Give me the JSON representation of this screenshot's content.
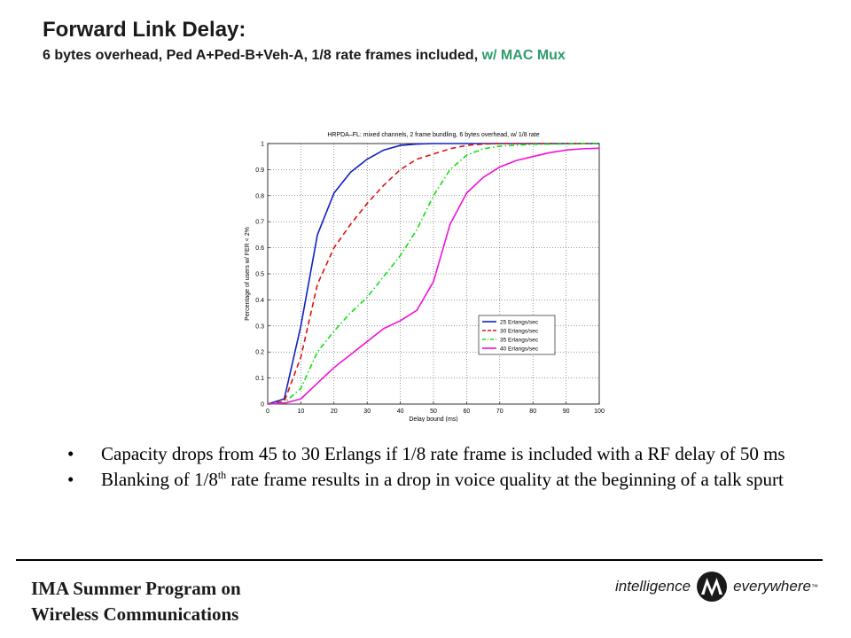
{
  "title": "Forward Link Delay:",
  "subtitle": {
    "main": "6 bytes overhead, Ped A+Ped-B+Veh-A, 1/8 rate frames included, ",
    "accent": "w/ MAC Mux"
  },
  "colors": {
    "accent": "#2e9c6a",
    "series": [
      "#1020c0",
      "#e01010",
      "#10e010",
      "#f010d8"
    ]
  },
  "bullets": [
    {
      "text": "Capacity drops from 45 to 30 Erlangs if 1/8 rate frame is included with a RF delay of 50 ms"
    },
    {
      "pre": "Blanking of 1/8",
      "sup": "th",
      "post": " rate frame results in a drop in voice quality at the beginning of a talk spurt"
    }
  ],
  "footer": {
    "line1": "IMA Summer Program on",
    "line2": "Wireless Communications"
  },
  "logo": {
    "left": "intelligence",
    "right": "everywhere",
    "tm": "™",
    "icon": "motorola-batwing-icon"
  },
  "chart_data": {
    "type": "line",
    "title": "HRPDA–FL: mixed channels, 2 frame bundling, 6 bytes overhead, w/ 1/8 rate",
    "xlabel": "Delay bound (ms)",
    "ylabel": "Percentage of users w/ FER < 2%",
    "xlim": [
      0,
      100
    ],
    "ylim": [
      0,
      1
    ],
    "xticks": [
      0,
      10,
      20,
      30,
      40,
      50,
      60,
      70,
      80,
      90,
      100
    ],
    "yticks": [
      0,
      0.1,
      0.2,
      0.3,
      0.4,
      0.5,
      0.6,
      0.7,
      0.8,
      0.9,
      1
    ],
    "grid": true,
    "legend_position": "lower-right",
    "series": [
      {
        "name": "25 Erlangs/sec",
        "style": "solid",
        "color": "#1020c0",
        "x": [
          0,
          5,
          10,
          15,
          20,
          25,
          30,
          35,
          40,
          45,
          50,
          60,
          100
        ],
        "y": [
          0,
          0.02,
          0.3,
          0.65,
          0.81,
          0.89,
          0.94,
          0.975,
          0.993,
          0.998,
          1,
          1,
          1
        ]
      },
      {
        "name": "30 Erlangs/sec",
        "style": "dashed",
        "color": "#e01010",
        "x": [
          0,
          5,
          10,
          15,
          20,
          25,
          30,
          35,
          40,
          45,
          50,
          55,
          60,
          65,
          70,
          100
        ],
        "y": [
          0,
          0.01,
          0.18,
          0.46,
          0.6,
          0.69,
          0.77,
          0.84,
          0.9,
          0.94,
          0.96,
          0.98,
          0.993,
          0.998,
          1,
          1
        ]
      },
      {
        "name": "35 Erlangs/sec",
        "style": "dash-dot",
        "color": "#10e010",
        "x": [
          0,
          5,
          10,
          15,
          20,
          25,
          30,
          35,
          40,
          45,
          50,
          55,
          60,
          65,
          70,
          80,
          100
        ],
        "y": [
          0,
          0.005,
          0.06,
          0.2,
          0.28,
          0.35,
          0.41,
          0.49,
          0.57,
          0.67,
          0.8,
          0.9,
          0.955,
          0.98,
          0.99,
          0.997,
          1
        ]
      },
      {
        "name": "40 Erlangs/sec",
        "style": "solid",
        "color": "#f010d8",
        "x": [
          0,
          5,
          10,
          15,
          20,
          25,
          30,
          35,
          40,
          45,
          50,
          55,
          60,
          65,
          70,
          75,
          80,
          85,
          90,
          95,
          100
        ],
        "y": [
          0,
          0.003,
          0.02,
          0.08,
          0.14,
          0.19,
          0.24,
          0.29,
          0.32,
          0.36,
          0.47,
          0.69,
          0.81,
          0.87,
          0.91,
          0.935,
          0.95,
          0.965,
          0.975,
          0.98,
          0.982
        ]
      }
    ]
  }
}
